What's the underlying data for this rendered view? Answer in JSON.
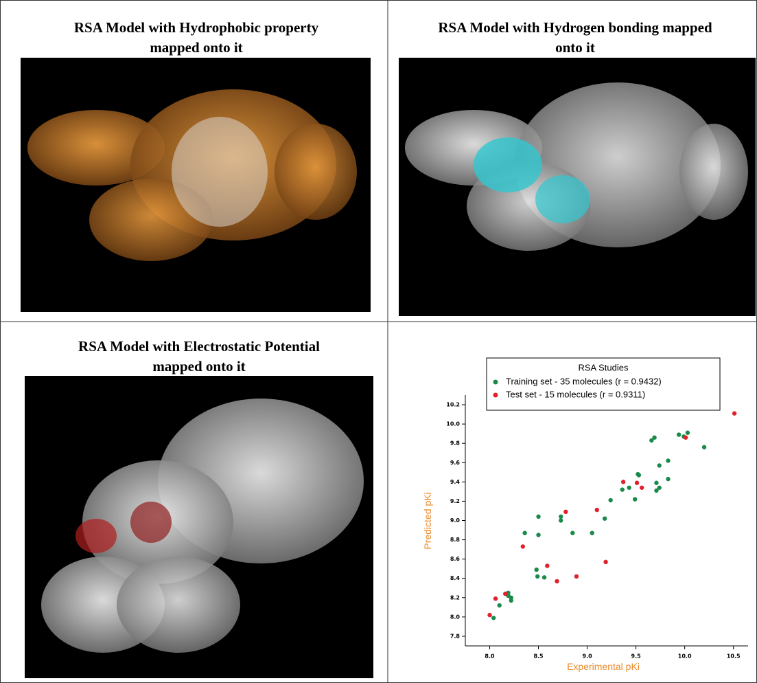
{
  "panels": [
    {
      "title_lines": [
        "RSA Model with Hydrophobic property",
        "mapped onto it"
      ]
    },
    {
      "title_lines": [
        "RSA Model with Hydrogen bonding mapped",
        "onto it"
      ]
    },
    {
      "title_lines": [
        "RSA Model with Electrostatic Potential",
        "mapped onto it"
      ]
    }
  ],
  "chart_data": {
    "type": "scatter",
    "legend_title": "RSA Studies",
    "x_label": "Experimental pKi",
    "y_label": "Predicted pKi",
    "xlim": [
      7.75,
      10.65
    ],
    "ylim": [
      7.7,
      10.3
    ],
    "xticks": [
      {
        "value": 8,
        "label": "8.0"
      },
      8.5,
      {
        "value": 9,
        "label": "9.0"
      },
      9.5,
      {
        "value": 10,
        "label": "10.0"
      },
      10.5
    ],
    "yticks": [
      7.8,
      {
        "value": 8,
        "label": "8.0"
      },
      8.2,
      8.4,
      8.6,
      8.8,
      {
        "value": 9,
        "label": "9.0"
      },
      9.2,
      9.4,
      9.6,
      9.8,
      {
        "value": 10,
        "label": "10.0"
      },
      10.2
    ],
    "series": [
      {
        "name": "Training set - 35 molecules (r = 0.9432)",
        "color": "#1a8a4a",
        "x": [
          8.04,
          8.1,
          8.19,
          8.19,
          8.22,
          8.22,
          8.36,
          8.48,
          8.5,
          8.5,
          8.49,
          8.56,
          8.73,
          8.73,
          8.85,
          9.05,
          9.18,
          9.24,
          9.36,
          9.43,
          9.49,
          9.52,
          9.53,
          9.71,
          9.71,
          9.74,
          9.83,
          9.66,
          9.69,
          9.74,
          9.83,
          9.94,
          9.99,
          10.03,
          10.2
        ],
        "y": [
          7.99,
          8.12,
          8.25,
          8.22,
          8.2,
          8.17,
          8.87,
          8.49,
          8.85,
          9.04,
          8.42,
          8.41,
          9.04,
          9.0,
          8.87,
          8.87,
          9.02,
          9.21,
          9.32,
          9.34,
          9.22,
          9.48,
          9.47,
          9.31,
          9.39,
          9.34,
          9.43,
          9.83,
          9.86,
          9.57,
          9.62,
          9.89,
          9.87,
          9.91,
          9.76
        ]
      },
      {
        "name": "Test set   - 15 molecules (r = 0.9311)",
        "color": "#e0202a",
        "x": [
          8.0,
          8.06,
          8.16,
          8.34,
          8.59,
          8.69,
          8.78,
          8.89,
          9.1,
          9.19,
          9.37,
          9.51,
          9.56,
          10.01,
          10.51
        ],
        "y": [
          8.02,
          8.19,
          8.24,
          8.73,
          8.53,
          8.37,
          9.09,
          8.42,
          9.11,
          8.57,
          9.4,
          9.39,
          9.34,
          9.86,
          10.11
        ]
      }
    ]
  }
}
